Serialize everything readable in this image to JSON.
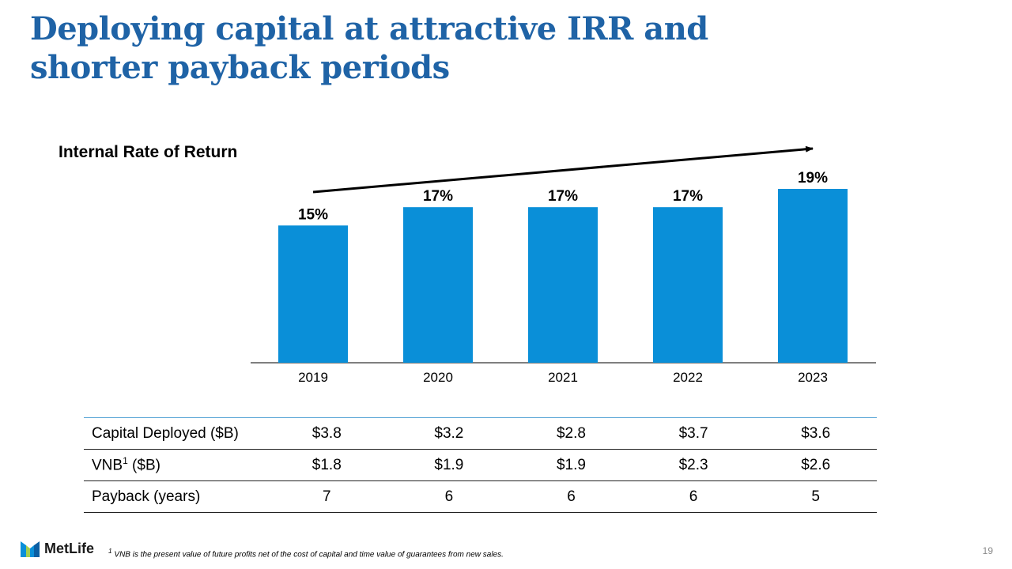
{
  "slide": {
    "title_line1": "Deploying capital at attractive IRR and",
    "title_line2": "shorter payback periods",
    "page_number": "19"
  },
  "colors": {
    "title": "#1f63a6",
    "bar": "#0a8fd8",
    "table_rule": "#5aa6d6"
  },
  "chart_data": {
    "type": "bar",
    "title": "Internal Rate of Return",
    "categories": [
      "2019",
      "2020",
      "2021",
      "2022",
      "2023"
    ],
    "values": [
      15,
      17,
      17,
      17,
      19
    ],
    "data_labels": [
      "15%",
      "17%",
      "17%",
      "17%",
      "19%"
    ],
    "xlabel": "",
    "ylabel": "",
    "ylim": [
      0,
      19
    ],
    "annotations": [
      "upward trend arrow from 2019 to 2023"
    ]
  },
  "table": {
    "rows": [
      {
        "label": "Capital Deployed ($B)",
        "values": [
          "$3.8",
          "$3.2",
          "$2.8",
          "$3.7",
          "$3.6"
        ]
      },
      {
        "label_main": "VNB",
        "label_sup": "1",
        "label_rest": " ($B)",
        "values": [
          "$1.8",
          "$1.9",
          "$1.9",
          "$2.3",
          "$2.6"
        ]
      },
      {
        "label": "Payback (years)",
        "values": [
          "7",
          "6",
          "6",
          "6",
          "5"
        ]
      }
    ]
  },
  "footer": {
    "logo_text": "MetLife",
    "footnote_mark": "1",
    "footnote": " VNB is the present value of future profits net of the cost of capital and time value of guarantees from new sales."
  }
}
